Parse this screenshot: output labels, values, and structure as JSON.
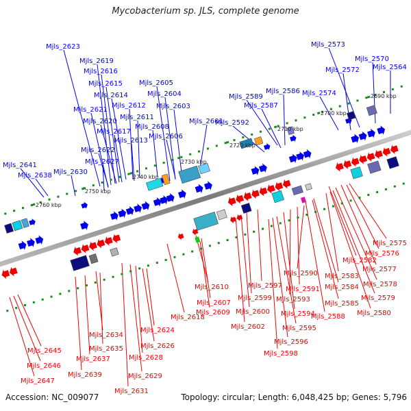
{
  "title": "Mycobacterium sp. JLS, complete genome",
  "footer": {
    "accession": "Accession: NC_009077",
    "summary": "Topology: circular; Length: 6,048,425 bp; Genes: 5,796"
  },
  "ticks": [
    "2690 kbp",
    "2700 kbp",
    "2710 kbp",
    "2720 kbp",
    "2730 kbp",
    "2740 kbp",
    "2750 kbp",
    "2760 kbp"
  ],
  "labels_forward": [
    "Mjls_2573",
    "Mjls_2570",
    "Mjls_2564",
    "Mjls_2572",
    "Mjls_2574",
    "Mjls_2589",
    "Mjls_2586",
    "Mjls_2587",
    "Mjls_2592",
    "Mjls_2623",
    "Mjls_2619",
    "Mjls_2616",
    "Mjls_2615",
    "Mjls_2614",
    "Mjls_2605",
    "Mjls_2604",
    "Mjls_2612",
    "Mjls_2603",
    "Mjls_2621",
    "Mjls_2611",
    "Mjls_2620",
    "Mjls_2608",
    "Mjls_2601",
    "Mjls_2617",
    "Mjls_2606",
    "Mjls_2613",
    "Mjls_2622",
    "Mjls_2627",
    "Mjls_2641",
    "Mjls_2630",
    "Mjls_2638"
  ],
  "labels_reverse": [
    "Mjls_2575",
    "Mjls_2576",
    "Mjls_2582",
    "Mjls_2577",
    "Mjls_2583",
    "Mjls_2578",
    "Mjls_2590",
    "Mjls_2584",
    "Mjls_2597",
    "Mjls_2591",
    "Mjls_2579",
    "Mjls_2610",
    "Mjls_2593",
    "Mjls_2585",
    "Mjls_2599",
    "Mjls_2607",
    "Mjls_2580",
    "Mjls_2594",
    "Mjls_2600",
    "Mjls_2588",
    "Mjls_2609",
    "Mjls_2618",
    "Mjls_2595",
    "Mjls_2602",
    "Mjls_2624",
    "Mjls_2634",
    "Mjls_2596",
    "Mjls_2626",
    "Mjls_2635",
    "Mjls_2598",
    "Mjls_2645",
    "Mjls_2628",
    "Mjls_2637",
    "Mjls_2646",
    "Mjls_2629",
    "Mjls_2639",
    "Mjls_2647",
    "Mjls_2631"
  ],
  "colors": {
    "forward": "#0000ee",
    "reverse": "#ee0000",
    "backbone": "#888888",
    "tick": "#1a8a1a"
  }
}
